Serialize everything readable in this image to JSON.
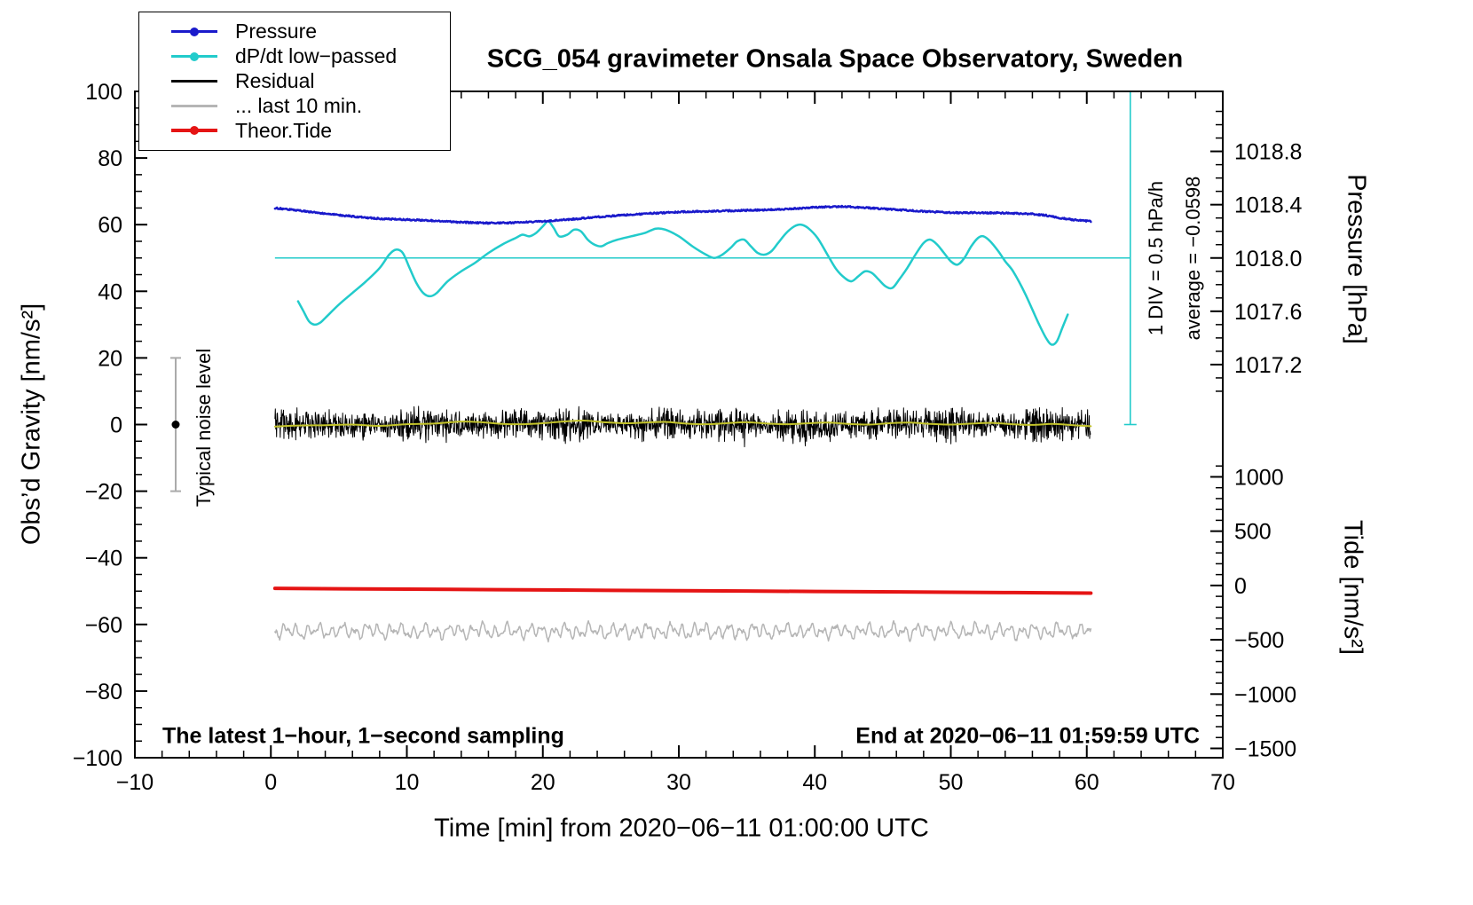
{
  "title": "SCG_054 gravimeter Onsala Space Observatory, Sweden",
  "annotations": {
    "bottom_left": "The latest 1−hour, 1−second sampling",
    "bottom_right": "End at 2020−06−11 01:59:59 UTC",
    "noise_level_label": "Typical noise level",
    "div_label": "1 DIV = 0.5 hPa/h",
    "average_label": "average = −0.0598"
  },
  "axes": {
    "x": {
      "label": "Time [min] from 2020−06−11 01:00:00 UTC",
      "min": -10,
      "max": 70,
      "minor_step": 2,
      "major_ticks": [
        -10,
        0,
        10,
        20,
        30,
        40,
        50,
        60,
        70
      ],
      "tick_labels": [
        "−10",
        "0",
        "10",
        "20",
        "30",
        "40",
        "50",
        "60",
        "70"
      ]
    },
    "y_left": {
      "label": "Obs’d Gravity [nm/s²]",
      "min": -100,
      "max": 100,
      "minor_step": 5,
      "major_ticks": [
        -100,
        -80,
        -60,
        -40,
        -20,
        0,
        20,
        40,
        60,
        80,
        100
      ],
      "tick_labels": [
        "−100",
        "−80",
        "−60",
        "−40",
        "−20",
        "0",
        "20",
        "40",
        "60",
        "80",
        "100"
      ]
    },
    "y_pressure": {
      "label": "Pressure [hPa]",
      "ticks": [
        1018.8,
        1018.4,
        1018.0,
        1017.6,
        1017.2
      ],
      "tick_labels": [
        "1018.8",
        "1018.4",
        "1018.0",
        "1017.6",
        "1017.2"
      ],
      "zero_hpa": 1018.0,
      "zero_gravity": 50,
      "gravity_per_hpa": 40,
      "minor_step_hpa": 0.1
    },
    "y_tide": {
      "label": "Tide [nm/s²]",
      "ticks": [
        1000,
        500,
        0,
        -500,
        -1000,
        -1500
      ],
      "tick_labels": [
        "1000",
        "500",
        "0",
        "−500",
        "−1000",
        "−1500"
      ],
      "zero_gravity": -48.3,
      "gravity_per_unit": 0.0326,
      "minor_step": 100
    }
  },
  "legend": {
    "items": [
      {
        "label": "Pressure",
        "color": "#1a1acb",
        "marker": true,
        "lw": 3
      },
      {
        "label": "dP/dt low−passed",
        "color": "#22cbcb",
        "marker": true,
        "lw": 2.5
      },
      {
        "label": "Residual",
        "color": "#000000",
        "marker": false,
        "lw": 2.5
      },
      {
        "label": "... last 10 min.",
        "color": "#b5b5b5",
        "marker": false,
        "lw": 2.5
      },
      {
        "label": "Theor.Tide",
        "color": "#e51414",
        "marker": true,
        "lw": 3.5
      }
    ]
  },
  "chart_data": {
    "type": "line",
    "x_units": "minutes from 2020-06-11 01:00:00 UTC",
    "series": [
      {
        "name": "Pressure",
        "axis": "pressure",
        "units": "hPa",
        "color": "#1a1acb",
        "lw": 2.5,
        "render": "noisyline",
        "noise_amp": 0.22,
        "points": [
          [
            0.3,
            1018.375
          ],
          [
            2,
            1018.357
          ],
          [
            4,
            1018.332
          ],
          [
            6,
            1018.312
          ],
          [
            8,
            1018.295
          ],
          [
            10,
            1018.287
          ],
          [
            12,
            1018.28
          ],
          [
            14,
            1018.268
          ],
          [
            16,
            1018.262
          ],
          [
            18,
            1018.265
          ],
          [
            20,
            1018.275
          ],
          [
            22,
            1018.29
          ],
          [
            24,
            1018.307
          ],
          [
            26,
            1018.322
          ],
          [
            28,
            1018.335
          ],
          [
            30,
            1018.345
          ],
          [
            32,
            1018.35
          ],
          [
            34,
            1018.355
          ],
          [
            36,
            1018.36
          ],
          [
            38,
            1018.367
          ],
          [
            40,
            1018.38
          ],
          [
            42,
            1018.387
          ],
          [
            44,
            1018.375
          ],
          [
            46,
            1018.362
          ],
          [
            48,
            1018.35
          ],
          [
            50,
            1018.34
          ],
          [
            52,
            1018.34
          ],
          [
            54,
            1018.337
          ],
          [
            56,
            1018.33
          ],
          [
            57,
            1018.32
          ],
          [
            58,
            1018.3
          ],
          [
            59,
            1018.287
          ],
          [
            60.3,
            1018.275
          ]
        ]
      },
      {
        "name": "dP/dt low−passed",
        "axis": "left",
        "units": "gravity-axis units; zero line at 50; 1 DIV (20 units) = 0.5 hPa/h",
        "color": "#22cbcb",
        "lw": 2.5,
        "render": "smooth",
        "points": [
          [
            2,
            37
          ],
          [
            2.4,
            34
          ],
          [
            2.8,
            31
          ],
          [
            3.2,
            30
          ],
          [
            3.6,
            30.5
          ],
          [
            4,
            32
          ],
          [
            5,
            36
          ],
          [
            6,
            39.5
          ],
          [
            7,
            43
          ],
          [
            8,
            47
          ],
          [
            8.7,
            51
          ],
          [
            9.2,
            52.5
          ],
          [
            9.7,
            51.5
          ],
          [
            10.2,
            47
          ],
          [
            10.7,
            42.5
          ],
          [
            11.2,
            39.5
          ],
          [
            11.7,
            38.5
          ],
          [
            12.2,
            39.5
          ],
          [
            13,
            43
          ],
          [
            14,
            46
          ],
          [
            15,
            48.5
          ],
          [
            16,
            51.5
          ],
          [
            17,
            54
          ],
          [
            18,
            56
          ],
          [
            18.5,
            57
          ],
          [
            19,
            56.5
          ],
          [
            19.5,
            57.5
          ],
          [
            20,
            59.5
          ],
          [
            20.4,
            61
          ],
          [
            20.8,
            59
          ],
          [
            21.2,
            56.5
          ],
          [
            21.8,
            57
          ],
          [
            22.3,
            58.5
          ],
          [
            22.8,
            58
          ],
          [
            23.3,
            55.5
          ],
          [
            23.8,
            54
          ],
          [
            24.3,
            53.5
          ],
          [
            24.8,
            54.5
          ],
          [
            25.5,
            55.5
          ],
          [
            26.5,
            56.5
          ],
          [
            27.5,
            57.5
          ],
          [
            28.3,
            58.8
          ],
          [
            29,
            58.5
          ],
          [
            30,
            56.5
          ],
          [
            31,
            53.5
          ],
          [
            32,
            51
          ],
          [
            32.6,
            50
          ],
          [
            33.2,
            51
          ],
          [
            33.8,
            53
          ],
          [
            34.3,
            55
          ],
          [
            34.8,
            55.5
          ],
          [
            35.3,
            53.5
          ],
          [
            35.8,
            51.5
          ],
          [
            36.3,
            51
          ],
          [
            36.8,
            52
          ],
          [
            37.3,
            54.5
          ],
          [
            37.9,
            57.5
          ],
          [
            38.5,
            59.5
          ],
          [
            39,
            60
          ],
          [
            39.5,
            59
          ],
          [
            40.2,
            56
          ],
          [
            41,
            50.5
          ],
          [
            41.6,
            46.5
          ],
          [
            42.2,
            44
          ],
          [
            42.7,
            43
          ],
          [
            43.2,
            44.5
          ],
          [
            43.7,
            46
          ],
          [
            44.2,
            45.5
          ],
          [
            44.7,
            43.5
          ],
          [
            45.2,
            41.5
          ],
          [
            45.7,
            41
          ],
          [
            46.2,
            43.5
          ],
          [
            46.8,
            47
          ],
          [
            47.4,
            51
          ],
          [
            48,
            54.5
          ],
          [
            48.5,
            55.5
          ],
          [
            49,
            54
          ],
          [
            49.5,
            51.5
          ],
          [
            50,
            49
          ],
          [
            50.5,
            48
          ],
          [
            51,
            50
          ],
          [
            51.5,
            53.5
          ],
          [
            52,
            56
          ],
          [
            52.4,
            56.5
          ],
          [
            52.9,
            55
          ],
          [
            53.5,
            52
          ],
          [
            54,
            49
          ],
          [
            54.5,
            46.5
          ],
          [
            55,
            43
          ],
          [
            55.5,
            39
          ],
          [
            56,
            34.5
          ],
          [
            56.5,
            30
          ],
          [
            57,
            26
          ],
          [
            57.4,
            24
          ],
          [
            57.8,
            25
          ],
          [
            58.2,
            29
          ],
          [
            58.6,
            33
          ]
        ]
      },
      {
        "name": "Residual",
        "axis": "left",
        "units": "nm/s²",
        "color": "#000000",
        "lw": 1,
        "render": "noiseband",
        "x_start": 0.3,
        "x_end": 60.3,
        "mean": 0,
        "noise_amp": 3.0
      },
      {
        "name": "Residual smoothed",
        "axis": "left",
        "units": "nm/s²",
        "color": "#c3c32a",
        "lw": 2,
        "render": "smooth",
        "points": [
          [
            0.3,
            -0.6
          ],
          [
            2,
            -0.3
          ],
          [
            4,
            -0.2
          ],
          [
            6,
            0
          ],
          [
            8,
            -0.4
          ],
          [
            10,
            0.1
          ],
          [
            12,
            0.3
          ],
          [
            14,
            0.9
          ],
          [
            15.5,
            0.7
          ],
          [
            17,
            0.2
          ],
          [
            18.5,
            0.1
          ],
          [
            20,
            0.4
          ],
          [
            21.5,
            0.9
          ],
          [
            23,
            1.2
          ],
          [
            24.5,
            0.7
          ],
          [
            26,
            0.4
          ],
          [
            27.5,
            0.6
          ],
          [
            29,
            0.8
          ],
          [
            30.5,
            0.3
          ],
          [
            32,
            0.1
          ],
          [
            33.5,
            0.4
          ],
          [
            35,
            0.7
          ],
          [
            36.5,
            0.3
          ],
          [
            38,
            0.1
          ],
          [
            39.5,
            0.4
          ],
          [
            41,
            0.6
          ],
          [
            42.5,
            0.2
          ],
          [
            44,
            0
          ],
          [
            45.5,
            0.4
          ],
          [
            47,
            0.6
          ],
          [
            48.5,
            0.2
          ],
          [
            50,
            0
          ],
          [
            51.5,
            0.3
          ],
          [
            53,
            0.5
          ],
          [
            54.5,
            0.1
          ],
          [
            56,
            -0.1
          ],
          [
            57.5,
            0.2
          ],
          [
            59,
            -0.2
          ],
          [
            60.3,
            -0.5
          ]
        ]
      },
      {
        "name": "... last 10 min.",
        "axis": "left",
        "units": "nm/s² (displayed offset at −62)",
        "color": "#b5b5b5",
        "lw": 1.5,
        "render": "wavy",
        "mean": -62,
        "x_start": 0.3,
        "x_end": 60.3,
        "components": [
          [
            1.3,
            7.3,
            0.5
          ],
          [
            0.9,
            13.7,
            2.0
          ],
          [
            0.7,
            3.1,
            4.0
          ]
        ],
        "noise_amp": 0.5
      },
      {
        "name": "Theor.Tide",
        "axis": "tide",
        "units": "nm/s²",
        "color": "#e51414",
        "lw": 4,
        "render": "smooth",
        "points": [
          [
            0.3,
            -27
          ],
          [
            10,
            -34
          ],
          [
            20,
            -41
          ],
          [
            30,
            -48
          ],
          [
            40,
            -55
          ],
          [
            50,
            -62
          ],
          [
            60.3,
            -70
          ]
        ]
      }
    ]
  },
  "overlays": {
    "dpdt_zero_line": {
      "gravity": 50,
      "x_start": 0.3,
      "x_end": 63.2,
      "color": "#22cbcb"
    },
    "dpdt_div_bar": {
      "x": 63.2,
      "gravity_min": 0,
      "gravity_max": 100,
      "color": "#22cbcb"
    },
    "noise_bar": {
      "x": -7,
      "gravity_center": 0,
      "half_range": 20,
      "bar_color": "#aaaaaa",
      "dot_color": "#000000"
    }
  }
}
